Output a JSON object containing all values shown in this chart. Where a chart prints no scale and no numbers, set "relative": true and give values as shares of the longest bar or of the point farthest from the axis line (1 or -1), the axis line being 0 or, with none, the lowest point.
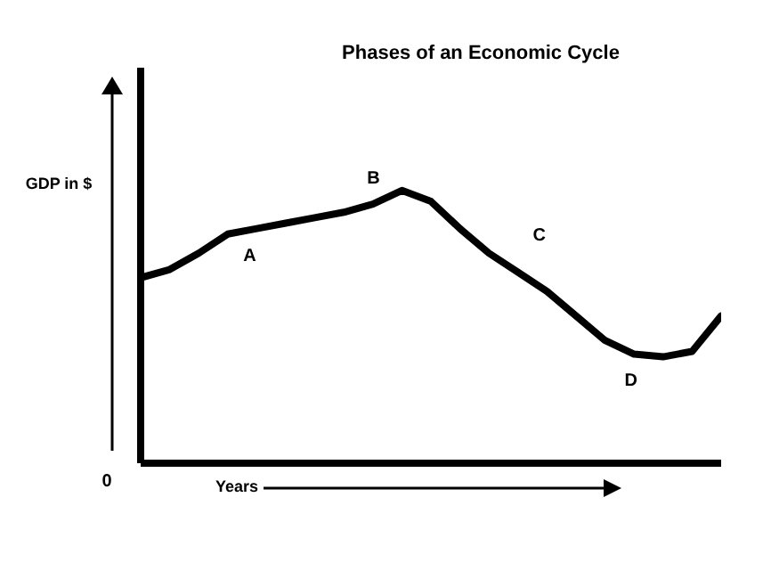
{
  "chart_data": {
    "type": "line",
    "title": "Phases of an Economic Cycle",
    "xlabel": "Years",
    "ylabel": "GDP in $",
    "relative": true,
    "categories": [
      null,
      null,
      null,
      null,
      null,
      null,
      null,
      null,
      null,
      null,
      null,
      null,
      null,
      null,
      null,
      null,
      null,
      null,
      null,
      null,
      null
    ],
    "series": [
      {
        "color": "#000000",
        "values": [
          0.68,
          0.71,
          0.77,
          0.84,
          0.86,
          0.88,
          0.9,
          0.92,
          0.95,
          1,
          0.96,
          0.86,
          0.77,
          0.7,
          0.63,
          0.54,
          0.45,
          0.4,
          0.39,
          0.41,
          0.54
        ]
      }
    ],
    "annotations": [
      "A",
      "B",
      "C",
      "D",
      "0"
    ],
    "grid": false,
    "legend": false,
    "marker": "none",
    "line_style": "solid"
  }
}
